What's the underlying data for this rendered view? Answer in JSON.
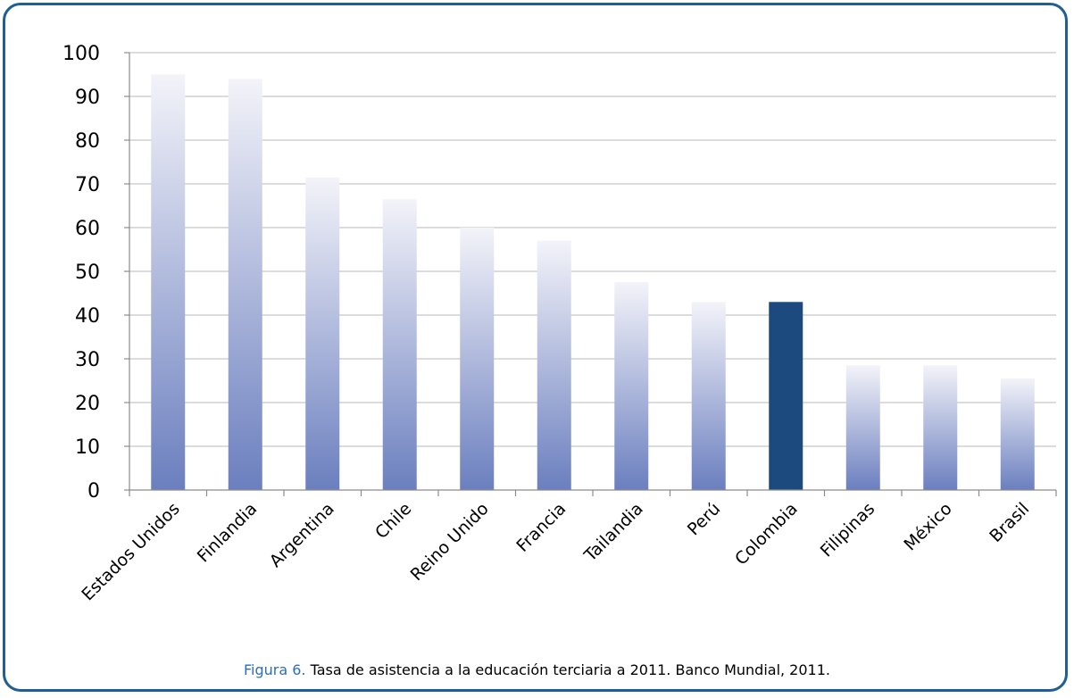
{
  "chart_data": {
    "type": "bar",
    "categories": [
      "Estados Unidos",
      "Finlandia",
      "Argentina",
      "Chile",
      "Reino Unido",
      "Francia",
      "Tailandia",
      "Perú",
      "Colombia",
      "Filipinas",
      "México",
      "Brasil"
    ],
    "values": [
      95,
      94,
      71.5,
      66.5,
      60,
      57,
      47.5,
      43,
      43,
      28.5,
      28.5,
      25.5
    ],
    "highlight": "Colombia",
    "ylim": [
      0,
      100
    ],
    "yticks": [
      0,
      10,
      20,
      30,
      40,
      50,
      60,
      70,
      80,
      90,
      100
    ],
    "grid": true,
    "colors": {
      "bar_top": "#f3f3f9",
      "bar_bottom": "#6b7fbf",
      "highlight": "#1c4a7e",
      "grid": "#c8c8c8",
      "frame": "#1f5f94"
    }
  },
  "caption": {
    "label": "Figura 6.",
    "text": "Tasa de asistencia a la educación terciaria a 2011. Banco Mundial, 2011."
  }
}
